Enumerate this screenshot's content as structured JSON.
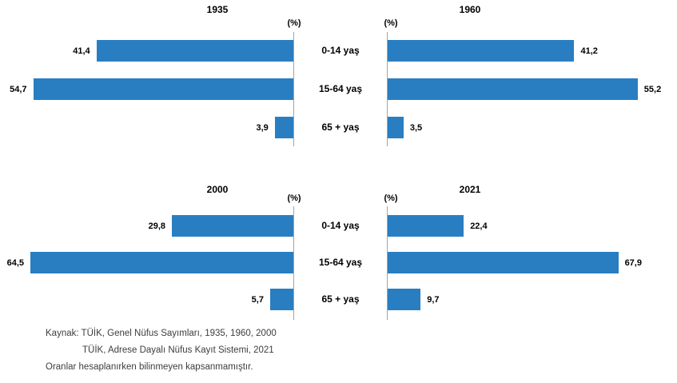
{
  "colors": {
    "bar": "#297EC2",
    "axis_line": "#a3a3a3",
    "label_text": "#000000",
    "footer_text": "#3d3d3d",
    "background": "#ffffff"
  },
  "unit_label": "(%)",
  "categories": [
    "0-14 yaş",
    "15-64 yaş",
    "65 + yaş"
  ],
  "chart_data": [
    {
      "type": "bar",
      "title": "1935",
      "orientation": "horizontal-left",
      "categories": [
        "0-14 yaş",
        "15-64 yaş",
        "65 + yaş"
      ],
      "values": [
        41.4,
        54.7,
        3.9
      ],
      "labels": [
        "41,4",
        "54,7",
        "3,9"
      ],
      "xlabel": "(%)",
      "ylabel": "",
      "xlim": [
        0,
        60
      ],
      "grid": false,
      "legend": false
    },
    {
      "type": "bar",
      "title": "1960",
      "orientation": "horizontal-right",
      "categories": [
        "0-14 yaş",
        "15-64 yaş",
        "65 + yaş"
      ],
      "values": [
        41.2,
        55.2,
        3.5
      ],
      "labels": [
        "41,2",
        "55,2",
        "3,5"
      ],
      "xlabel": "(%)",
      "ylabel": "",
      "xlim": [
        0,
        60
      ],
      "grid": false,
      "legend": false
    },
    {
      "type": "bar",
      "title": "2000",
      "orientation": "horizontal-left",
      "categories": [
        "0-14 yaş",
        "15-64 yaş",
        "65 + yaş"
      ],
      "values": [
        29.8,
        64.5,
        5.7
      ],
      "labels": [
        "29,8",
        "64,5",
        "5,7"
      ],
      "xlabel": "(%)",
      "ylabel": "",
      "xlim": [
        0,
        70
      ],
      "grid": false,
      "legend": false
    },
    {
      "type": "bar",
      "title": "2021",
      "orientation": "horizontal-right",
      "categories": [
        "0-14 yaş",
        "15-64 yaş",
        "65 + yaş"
      ],
      "values": [
        22.4,
        67.9,
        9.7
      ],
      "labels": [
        "22,4",
        "67,9",
        "9,7"
      ],
      "xlabel": "(%)",
      "ylabel": "",
      "xlim": [
        0,
        80
      ],
      "grid": false,
      "legend": false
    }
  ],
  "footer": {
    "line1": "Kaynak: TÜİK, Genel Nüfus Sayımları, 1935, 1960, 2000",
    "line2": "TÜİK, Adrese Dayalı Nüfus Kayıt Sistemi, 2021",
    "line3": "Oranlar hesaplanırken bilinmeyen kapsanmamıştır."
  }
}
